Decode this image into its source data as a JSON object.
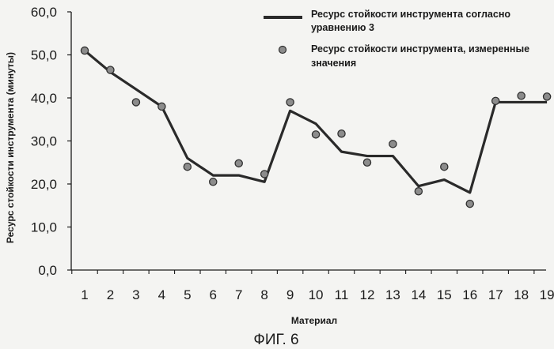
{
  "chart_data": {
    "type": "line",
    "x": [
      1,
      2,
      3,
      4,
      5,
      6,
      7,
      8,
      9,
      10,
      11,
      12,
      13,
      14,
      15,
      16,
      17,
      18,
      19
    ],
    "categories": [
      "1",
      "2",
      "3",
      "4",
      "5",
      "6",
      "7",
      "8",
      "9",
      "10",
      "11",
      "12",
      "13",
      "14",
      "15",
      "16",
      "17",
      "18",
      "19"
    ],
    "series": [
      {
        "name": "Ресурс стойкости инструмента согласно уравнению 3",
        "style": "line",
        "values": [
          51.0,
          46.0,
          42.0,
          38.0,
          26.0,
          22.0,
          22.0,
          20.5,
          37.0,
          34.0,
          27.5,
          26.5,
          26.5,
          19.5,
          21.0,
          18.0,
          39.0,
          39.0,
          39.0
        ]
      },
      {
        "name": "Ресурс стойкости инструмента, измеренные значения",
        "style": "markers",
        "values": [
          51.0,
          46.5,
          39.0,
          38.0,
          24.0,
          20.5,
          24.8,
          22.3,
          39.0,
          31.5,
          31.7,
          25.0,
          29.3,
          18.3,
          24.0,
          15.4,
          39.3,
          40.5,
          40.3
        ]
      }
    ],
    "y_ticks": [
      "0,0",
      "10,0",
      "20,0",
      "30,0",
      "40,0",
      "50,0",
      "60,0"
    ],
    "ylim": [
      0,
      60
    ],
    "xlabel": "Материал",
    "ylabel": "Ресурс стойкости инструмента (минуты)",
    "legend": [
      {
        "label_lines": [
          "Ресурс стойкости инструмента согласно",
          "уравнению 3"
        ]
      },
      {
        "label_lines": [
          "Ресурс стойкости инструмента, измеренные",
          "значения"
        ]
      }
    ],
    "legend_position": "top-right",
    "grid": false,
    "caption": "ФИГ. 6",
    "colors": {
      "line": "#2a2a2a",
      "marker_fill": "#8c8c8c",
      "marker_edge": "#2f2f2f",
      "axis": "#1a1a1a"
    }
  }
}
